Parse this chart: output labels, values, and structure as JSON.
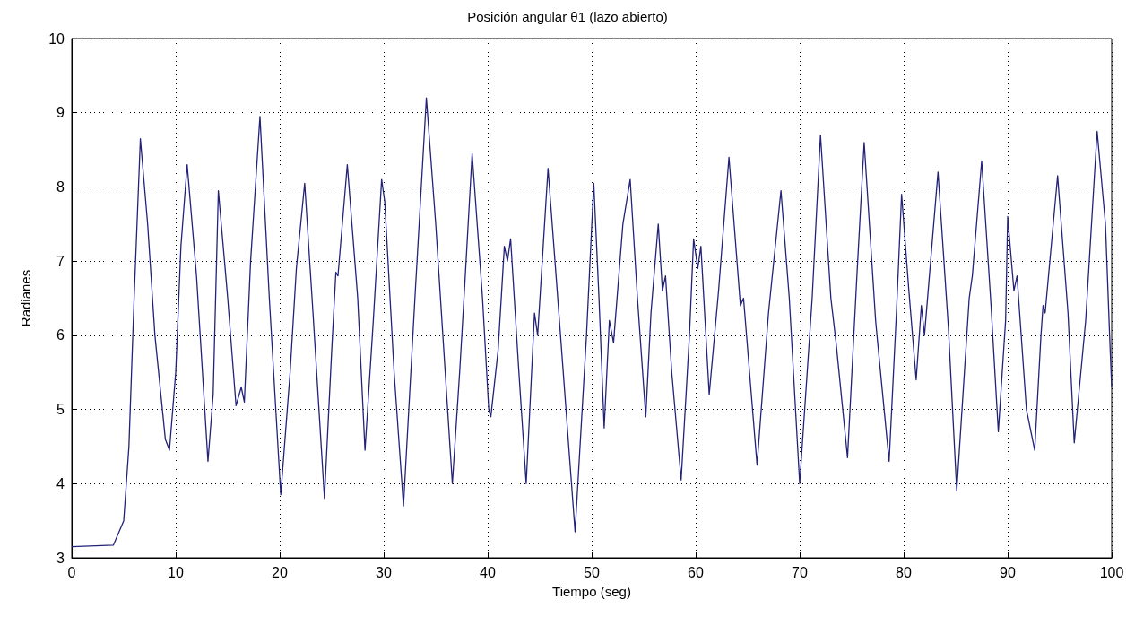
{
  "chart_data": {
    "type": "line",
    "title": "Posición angular θ1 (lazo abierto)",
    "xlabel": "Tiempo (seg)",
    "ylabel": "Radianes",
    "xlim": [
      0,
      100
    ],
    "xticks": [
      0,
      10,
      20,
      30,
      40,
      50,
      60,
      70,
      80,
      90,
      100
    ],
    "ylim": [
      3,
      10
    ],
    "yticks": [
      3,
      4,
      5,
      6,
      7,
      8,
      9,
      10
    ],
    "grid": true,
    "marker": "none",
    "line_style": "solid",
    "series": [
      {
        "color": "#22227a",
        "x": [
          0,
          4,
          5,
          5.5,
          6,
          6.6,
          7.3,
          8,
          9,
          9.4,
          10,
          10.5,
          11.1,
          12,
          13.1,
          13.6,
          14.1,
          15,
          15.8,
          16.3,
          16.6,
          17.2,
          18.1,
          19,
          20.1,
          21,
          21.6,
          22.4,
          23.2,
          24.3,
          25,
          25.4,
          25.6,
          26.5,
          27.5,
          28.2,
          29,
          29.8,
          30.1,
          31,
          31.9,
          33,
          34.1,
          35,
          36.6,
          37.3,
          37.8,
          38.5,
          39.5,
          40.1,
          40.3,
          41,
          41.6,
          41.9,
          42.2,
          43,
          43.7,
          44.5,
          44.8,
          45.8,
          47,
          48.4,
          49.5,
          50.2,
          50.7,
          51.2,
          51.7,
          52.1,
          53,
          53.7,
          54.4,
          55.2,
          55.7,
          56.4,
          56.8,
          57.1,
          57.7,
          58.6,
          59.4,
          59.8,
          60.2,
          60.5,
          61.3,
          62.2,
          63.2,
          64.3,
          64.6,
          65.9,
          67,
          68.2,
          69,
          70,
          71.2,
          72,
          73,
          73.5,
          74.6,
          75.5,
          76.2,
          77.3,
          77.5,
          78.6,
          79.3,
          79.8,
          80.5,
          81.2,
          81.7,
          82,
          83.3,
          84.3,
          85.1,
          86.3,
          86.6,
          87.5,
          88.4,
          89.1,
          89.8,
          90,
          90.6,
          90.9,
          91.8,
          92.6,
          93.2,
          93.4,
          93.6,
          94.8,
          95.8,
          96.4,
          97.5,
          98.6,
          99.4,
          99.8,
          100
        ],
        "values": [
          3.15,
          3.17,
          3.5,
          4.5,
          6.5,
          8.65,
          7.5,
          6.0,
          4.6,
          4.45,
          5.5,
          7.2,
          8.3,
          6.8,
          4.3,
          5.2,
          7.95,
          6.5,
          5.05,
          5.3,
          5.1,
          7.0,
          8.95,
          6.5,
          3.85,
          5.5,
          6.9,
          8.05,
          6.3,
          3.8,
          5.8,
          6.85,
          6.8,
          8.3,
          6.5,
          4.45,
          6.2,
          8.1,
          7.8,
          5.5,
          3.7,
          6.5,
          9.2,
          7.5,
          4.0,
          5.5,
          6.7,
          8.45,
          6.5,
          5.0,
          4.9,
          5.8,
          7.2,
          7.0,
          7.3,
          5.5,
          4.0,
          6.3,
          6.0,
          8.25,
          6.0,
          3.35,
          6.0,
          8.05,
          6.5,
          4.75,
          6.2,
          5.9,
          7.5,
          8.1,
          6.5,
          4.9,
          6.3,
          7.5,
          6.6,
          6.8,
          5.5,
          4.05,
          6.0,
          7.3,
          6.9,
          7.2,
          5.2,
          6.6,
          8.4,
          6.4,
          6.5,
          4.25,
          6.3,
          7.95,
          6.5,
          4.0,
          6.5,
          8.7,
          6.5,
          5.9,
          4.35,
          6.8,
          8.6,
          6.2,
          5.9,
          4.3,
          6.3,
          7.9,
          6.6,
          5.4,
          6.4,
          6.0,
          8.2,
          6.1,
          3.9,
          6.5,
          6.8,
          8.35,
          6.4,
          4.7,
          6.2,
          7.6,
          6.6,
          6.8,
          5.0,
          4.45,
          6.0,
          6.4,
          6.3,
          8.15,
          6.3,
          4.55,
          6.2,
          8.75,
          7.5,
          6.0,
          5.3
        ]
      }
    ]
  }
}
